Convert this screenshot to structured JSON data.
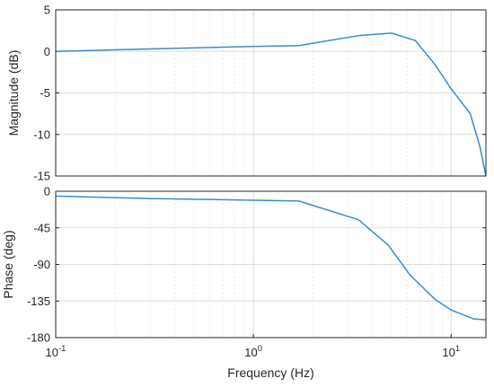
{
  "chart_data": [
    {
      "type": "line",
      "xlabel": "",
      "ylabel": "Magnitude (dB)",
      "xscale": "log",
      "xlim": [
        0.1,
        15
      ],
      "ylim": [
        -15,
        5
      ],
      "yticks": [
        5,
        0,
        -5,
        -10,
        -15
      ],
      "grid": true,
      "color": "#3a8dc9",
      "series": [
        {
          "x": [
            0.1,
            0.3,
            1,
            1.7,
            3.4,
            5,
            6.6,
            8.3,
            10,
            12.5,
            14,
            15
          ],
          "values": [
            0,
            0.3,
            0.6,
            0.7,
            1.9,
            2.2,
            1.3,
            -1.6,
            -4.5,
            -7.5,
            -11.5,
            -15
          ]
        }
      ]
    },
    {
      "type": "line",
      "xlabel": "Frequency  (Hz)",
      "ylabel": "Phase (deg)",
      "xscale": "log",
      "xlim": [
        0.1,
        15
      ],
      "xticks": [
        {
          "value": 0.1,
          "base": "10",
          "exp": "-1"
        },
        {
          "value": 1,
          "base": "10",
          "exp": "0"
        },
        {
          "value": 10,
          "base": "10",
          "exp": "1"
        }
      ],
      "ylim": [
        -180,
        0
      ],
      "yticks": [
        0,
        -45,
        -90,
        -135,
        -180
      ],
      "grid": true,
      "color": "#3a8dc9",
      "series": [
        {
          "x": [
            0.1,
            0.3,
            1,
            1.7,
            3.4,
            4.8,
            6.2,
            8.3,
            10,
            13,
            15
          ],
          "values": [
            -6,
            -9,
            -11,
            -12,
            -35,
            -66,
            -103,
            -133,
            -146,
            -157,
            -158
          ]
        }
      ]
    }
  ]
}
